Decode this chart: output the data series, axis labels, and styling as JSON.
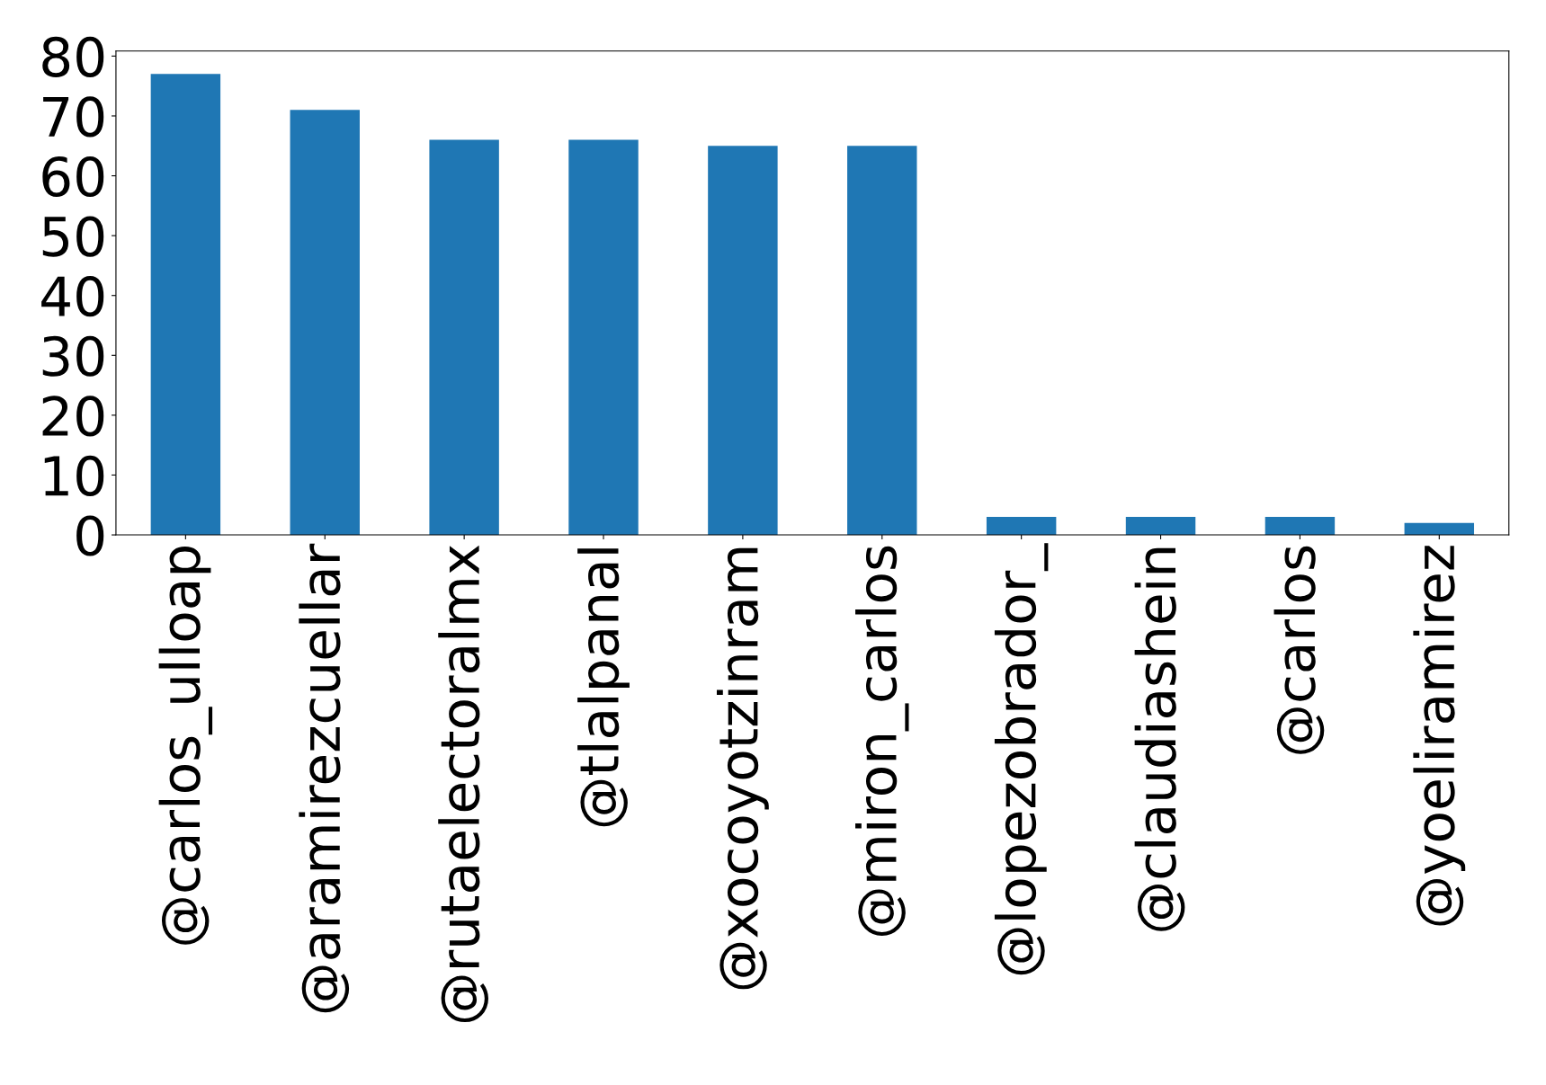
{
  "chart_data": {
    "type": "bar",
    "categories": [
      "@carlos_ulloap",
      "@aramirezcuellar",
      "@rutaelectoralmx",
      "@tlalpanal",
      "@xocoyotzinram",
      "@miron_carlos",
      "@lopezobrador_",
      "@claudiashein",
      "@carlos",
      "@yoeliramirez"
    ],
    "values": [
      77,
      71,
      66,
      66,
      65,
      65,
      3,
      3,
      3,
      2
    ],
    "color": "#1f77b4",
    "ylim": [
      0,
      80.85
    ],
    "yticks": [
      0,
      10,
      20,
      30,
      40,
      50,
      60,
      70,
      80
    ],
    "grid": false,
    "legend": false
  }
}
